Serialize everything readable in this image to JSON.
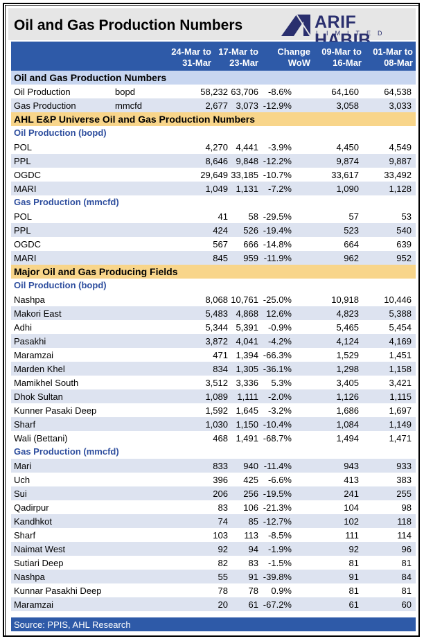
{
  "title": "Oil and Gas Production Numbers",
  "logo": {
    "name": "ARIF HABIB",
    "sub": "LIMITED"
  },
  "header": {
    "col1": [
      "24-Mar to",
      "31-Mar"
    ],
    "col2": [
      "17-Mar to",
      "23-Mar"
    ],
    "col3": [
      "Change",
      "WoW"
    ],
    "col4": [
      "09-Mar to",
      "16-Mar"
    ],
    "col5": [
      "01-Mar to",
      "08-Mar"
    ]
  },
  "colors": {
    "header_bg": "#2e5aa8",
    "section_bg": "#c8d6f0",
    "section2_bg": "#f8d58a",
    "sub_text": "#2e4e9e",
    "alt_row": "#dde3f0"
  },
  "rows": [
    {
      "kind": "section",
      "label": "Oil and Gas Production Numbers"
    },
    {
      "kind": "data",
      "label": "Oil Production",
      "unit": "bopd",
      "v": [
        "58,232",
        "63,706",
        "-8.6%",
        "64,160",
        "64,538"
      ]
    },
    {
      "kind": "data",
      "label": "Gas Production",
      "unit": "mmcfd",
      "v": [
        "2,677",
        "3,073",
        "-12.9%",
        "3,058",
        "3,033"
      ]
    },
    {
      "kind": "section2",
      "label": "AHL E&P Universe Oil and Gas Production Numbers"
    },
    {
      "kind": "sub",
      "label": "Oil Production (bopd)"
    },
    {
      "kind": "data",
      "label": "POL",
      "unit": "",
      "v": [
        "4,270",
        "4,441",
        "-3.9%",
        "4,450",
        "4,549"
      ]
    },
    {
      "kind": "data",
      "label": "PPL",
      "unit": "",
      "v": [
        "8,646",
        "9,848",
        "-12.2%",
        "9,874",
        "9,887"
      ]
    },
    {
      "kind": "data",
      "label": "OGDC",
      "unit": "",
      "v": [
        "29,649",
        "33,185",
        "-10.7%",
        "33,617",
        "33,492"
      ]
    },
    {
      "kind": "data",
      "label": "MARI",
      "unit": "",
      "v": [
        "1,049",
        "1,131",
        "-7.2%",
        "1,090",
        "1,128"
      ]
    },
    {
      "kind": "sub",
      "label": "Gas Production (mmcfd)"
    },
    {
      "kind": "data",
      "label": "POL",
      "unit": "",
      "v": [
        "41",
        "58",
        "-29.5%",
        "57",
        "53"
      ]
    },
    {
      "kind": "data",
      "label": "PPL",
      "unit": "",
      "v": [
        "424",
        "526",
        "-19.4%",
        "523",
        "540"
      ]
    },
    {
      "kind": "data",
      "label": "OGDC",
      "unit": "",
      "v": [
        "567",
        "666",
        "-14.8%",
        "664",
        "639"
      ]
    },
    {
      "kind": "data",
      "label": "MARI",
      "unit": "",
      "v": [
        "845",
        "959",
        "-11.9%",
        "962",
        "952"
      ]
    },
    {
      "kind": "section2",
      "label": "Major Oil and Gas Producing Fields"
    },
    {
      "kind": "sub",
      "label": "Oil Production (bopd)"
    },
    {
      "kind": "data",
      "label": "Nashpa",
      "unit": "",
      "v": [
        "8,068",
        "10,761",
        "-25.0%",
        "10,918",
        "10,446"
      ]
    },
    {
      "kind": "data",
      "label": "Makori East",
      "unit": "",
      "v": [
        "5,483",
        "4,868",
        "12.6%",
        "4,823",
        "5,388"
      ]
    },
    {
      "kind": "data",
      "label": "Adhi",
      "unit": "",
      "v": [
        "5,344",
        "5,391",
        "-0.9%",
        "5,465",
        "5,454"
      ]
    },
    {
      "kind": "data",
      "label": "Pasakhi",
      "unit": "",
      "v": [
        "3,872",
        "4,041",
        "-4.2%",
        "4,124",
        "4,169"
      ]
    },
    {
      "kind": "data",
      "label": "Maramzai",
      "unit": "",
      "v": [
        "471",
        "1,394",
        "-66.3%",
        "1,529",
        "1,451"
      ]
    },
    {
      "kind": "data",
      "label": "Marden Khel",
      "unit": "",
      "v": [
        "834",
        "1,305",
        "-36.1%",
        "1,298",
        "1,158"
      ]
    },
    {
      "kind": "data",
      "label": "Mamikhel South",
      "unit": "",
      "v": [
        "3,512",
        "3,336",
        "5.3%",
        "3,405",
        "3,421"
      ]
    },
    {
      "kind": "data",
      "label": "Dhok Sultan",
      "unit": "",
      "v": [
        "1,089",
        "1,111",
        "-2.0%",
        "1,126",
        "1,115"
      ]
    },
    {
      "kind": "data",
      "label": "Kunner Pasaki Deep",
      "unit": "",
      "v": [
        "1,592",
        "1,645",
        "-3.2%",
        "1,686",
        "1,697"
      ]
    },
    {
      "kind": "data",
      "label": "Sharf",
      "unit": "",
      "v": [
        "1,030",
        "1,150",
        "-10.4%",
        "1,084",
        "1,149"
      ]
    },
    {
      "kind": "data",
      "label": "Wali (Bettani)",
      "unit": "",
      "v": [
        "468",
        "1,491",
        "-68.7%",
        "1,494",
        "1,471"
      ]
    },
    {
      "kind": "sub",
      "label": "Gas Production (mmcfd)"
    },
    {
      "kind": "data",
      "label": "Mari",
      "unit": "",
      "v": [
        "833",
        "940",
        "-11.4%",
        "943",
        "933"
      ]
    },
    {
      "kind": "data",
      "label": "Uch",
      "unit": "",
      "v": [
        "396",
        "425",
        "-6.6%",
        "413",
        "383"
      ]
    },
    {
      "kind": "data",
      "label": "Sui",
      "unit": "",
      "v": [
        "206",
        "256",
        "-19.5%",
        "241",
        "255"
      ]
    },
    {
      "kind": "data",
      "label": "Qadirpur",
      "unit": "",
      "v": [
        "83",
        "106",
        "-21.3%",
        "104",
        "98"
      ]
    },
    {
      "kind": "data",
      "label": "Kandhkot",
      "unit": "",
      "v": [
        "74",
        "85",
        "-12.7%",
        "102",
        "118"
      ]
    },
    {
      "kind": "data",
      "label": "Sharf",
      "unit": "",
      "v": [
        "103",
        "113",
        "-8.5%",
        "111",
        "114"
      ]
    },
    {
      "kind": "data",
      "label": "Naimat West",
      "unit": "",
      "v": [
        "92",
        "94",
        "-1.9%",
        "92",
        "96"
      ]
    },
    {
      "kind": "data",
      "label": "Sutiari Deep",
      "unit": "",
      "v": [
        "82",
        "83",
        "-1.5%",
        "81",
        "81"
      ]
    },
    {
      "kind": "data",
      "label": "Nashpa",
      "unit": "",
      "v": [
        "55",
        "91",
        "-39.8%",
        "91",
        "84"
      ]
    },
    {
      "kind": "data",
      "label": "Kunnar Pasakhi Deep",
      "unit": "",
      "v": [
        "78",
        "78",
        "0.9%",
        "81",
        "81"
      ]
    },
    {
      "kind": "data",
      "label": "Maramzai",
      "unit": "",
      "v": [
        "20",
        "61",
        "-67.2%",
        "61",
        "60"
      ]
    }
  ],
  "footer": "Source: PPIS, AHL Research"
}
